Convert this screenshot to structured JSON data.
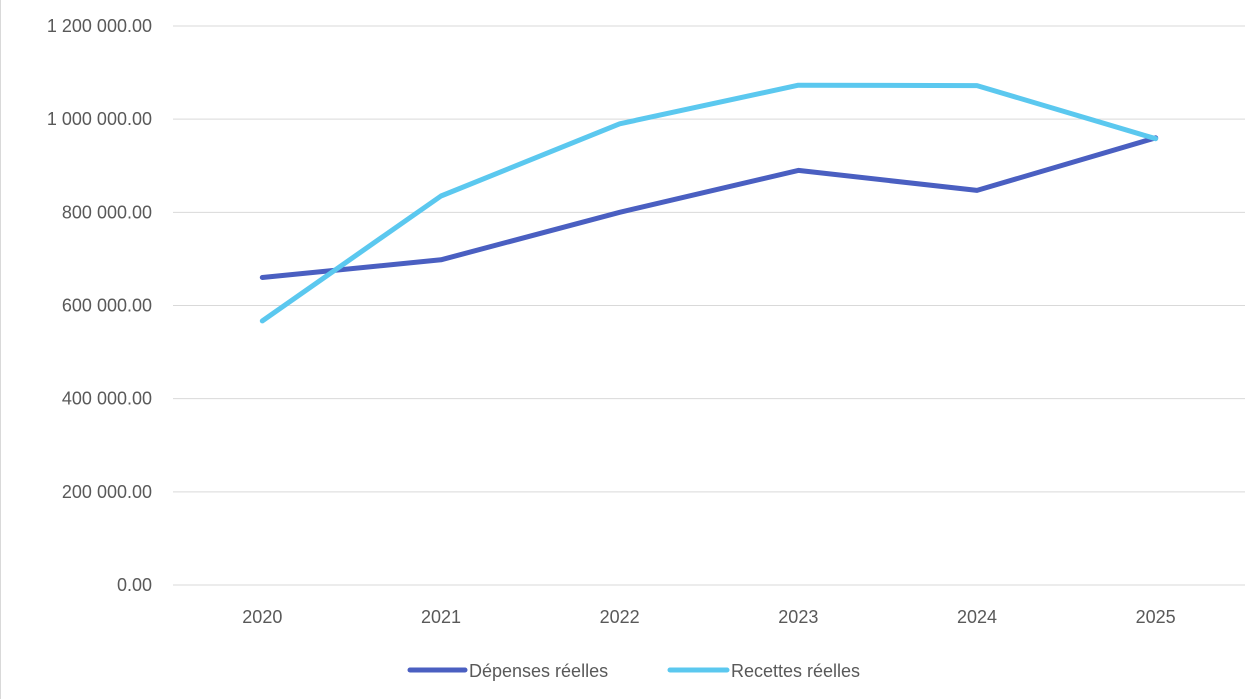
{
  "chart_data": {
    "type": "line",
    "title": "",
    "xlabel": "",
    "ylabel": "",
    "categories": [
      "2020",
      "2021",
      "2022",
      "2023",
      "2024",
      "2025"
    ],
    "y_ticks": [
      0,
      200000,
      400000,
      600000,
      800000,
      1000000,
      1200000
    ],
    "y_tick_labels": [
      "0.00",
      "200 000.00",
      "400 000.00",
      "600 000.00",
      "800 000.00",
      "1 000 000.00",
      "1 200 000.00"
    ],
    "ylim": [
      0,
      1200000
    ],
    "grid": "horizontal",
    "legend_position": "bottom",
    "series": [
      {
        "name": "Dépenses réelles",
        "color": "#4a5fc1",
        "values": [
          660000,
          698000,
          800000,
          890000,
          847000,
          960000
        ]
      },
      {
        "name": "Recettes réelles",
        "color": "#5bc8ef",
        "values": [
          567000,
          835000,
          990000,
          1073000,
          1072000,
          958000
        ]
      }
    ]
  }
}
